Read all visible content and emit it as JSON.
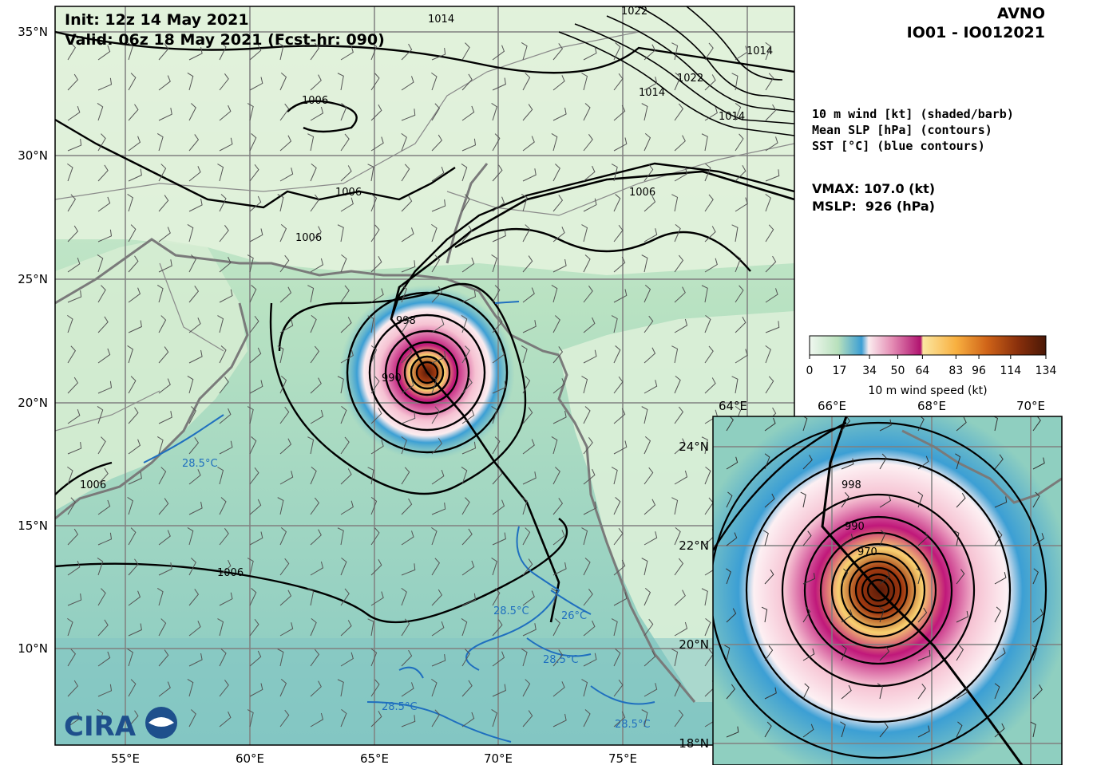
{
  "header": {
    "init_line": "Init:   12z 14 May 2021",
    "valid_line": "Valid: 06z 18 May 2021 (Fcst-hr: 090)"
  },
  "model": {
    "name": "AVNO",
    "storm_id": "IO01 - IO012021"
  },
  "legend_lines": [
    "10 m wind [kt] (shaded/barb)",
    "Mean SLP [hPa] (contours)",
    "SST [°C] (blue contours)"
  ],
  "stats": {
    "vmax": "VMAX: 107.0 (kt)",
    "mslp": "MSLP:  926 (hPa)"
  },
  "main_map": {
    "lon_ticks": [
      "55°E",
      "60°E",
      "65°E",
      "70°E",
      "75°E"
    ],
    "lat_ticks": [
      "35°N",
      "30°N",
      "25°N",
      "20°N",
      "15°N",
      "10°N"
    ],
    "contour_labels": [
      "1006",
      "1006",
      "1006",
      "1006",
      "1006",
      "1006",
      "1014",
      "1022",
      "1014",
      "1014",
      "1022",
      "1014",
      "998",
      "990"
    ],
    "sst_labels": [
      "28.5°C",
      "28.5°C",
      "26°C",
      "28.5°C",
      "28.5°C",
      "28.5°C"
    ],
    "logo_text": "CIRA"
  },
  "colorbar": {
    "ticks": [
      "0",
      "17",
      "34",
      "50",
      "64",
      "83",
      "96",
      "114",
      "134"
    ],
    "label": "10 m wind speed (kt)",
    "colors": [
      "#e8f5e9",
      "#a8dcb0",
      "#3c9fd4",
      "#f8d6df",
      "#c0187a",
      "#f8d070",
      "#e8892a",
      "#a23a10",
      "#5a1a08"
    ]
  },
  "inset_map": {
    "lon_ticks": [
      "64°E",
      "66°E",
      "68°E",
      "70°E"
    ],
    "lat_ticks": [
      "24°N",
      "22°N",
      "20°N",
      "18°N"
    ],
    "contour_labels": [
      "998",
      "990",
      "970"
    ]
  }
}
